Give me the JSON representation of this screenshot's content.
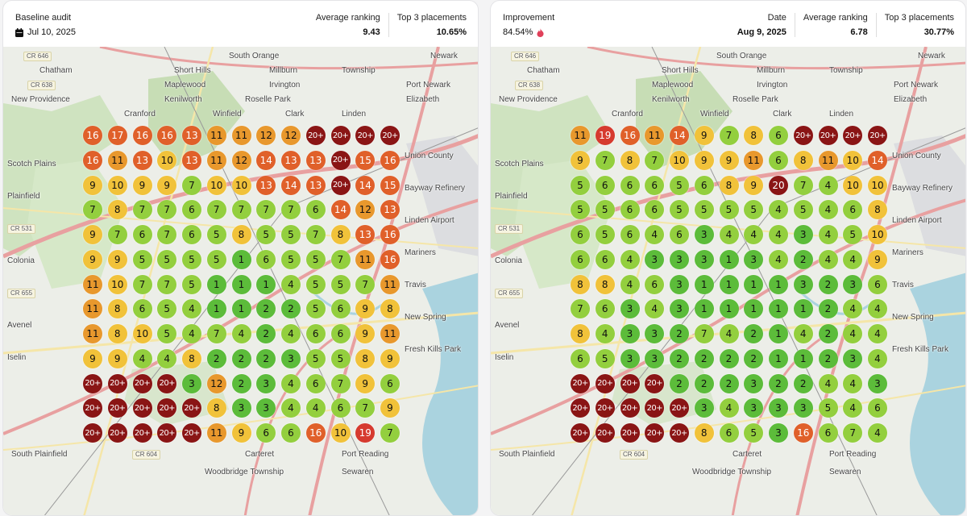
{
  "baseline": {
    "title": "Baseline audit",
    "date": "Jul 10, 2025",
    "date_icon": "calendar-icon",
    "average_ranking_label": "Average ranking",
    "average_ranking": "9.43",
    "top3_label": "Top 3 placements",
    "top3": "10.65%",
    "grid": [
      [
        "16",
        "17",
        "16",
        "16",
        "13",
        "11",
        "11",
        "12",
        "12",
        "20+",
        "20+",
        "20+",
        "20+"
      ],
      [
        "16",
        "11",
        "13",
        "10",
        "13",
        "11",
        "12",
        "14",
        "13",
        "13",
        "20+",
        "15",
        "16"
      ],
      [
        "9",
        "10",
        "9",
        "9",
        "7",
        "10",
        "10",
        "13",
        "14",
        "13",
        "20+",
        "14",
        "15"
      ],
      [
        "7",
        "8",
        "7",
        "7",
        "6",
        "7",
        "7",
        "7",
        "7",
        "6",
        "14",
        "12",
        "13"
      ],
      [
        "9",
        "7",
        "6",
        "7",
        "6",
        "5",
        "8",
        "5",
        "5",
        "7",
        "8",
        "13",
        "16"
      ],
      [
        "9",
        "9",
        "5",
        "5",
        "5",
        "5",
        "1",
        "6",
        "5",
        "5",
        "7",
        "11",
        "16"
      ],
      [
        "11",
        "10",
        "7",
        "7",
        "5",
        "1",
        "1",
        "1",
        "4",
        "5",
        "5",
        "7",
        "11"
      ],
      [
        "11",
        "8",
        "6",
        "5",
        "4",
        "1",
        "1",
        "2",
        "2",
        "5",
        "6",
        "9",
        "8"
      ],
      [
        "11",
        "8",
        "10",
        "5",
        "4",
        "7",
        "4",
        "2",
        "4",
        "6",
        "6",
        "9",
        "11"
      ],
      [
        "9",
        "9",
        "4",
        "4",
        "8",
        "2",
        "2",
        "2",
        "3",
        "5",
        "5",
        "8",
        "9"
      ],
      [
        "20+",
        "20+",
        "20+",
        "20+",
        "3",
        "12",
        "2",
        "3",
        "4",
        "6",
        "7",
        "9",
        "6"
      ],
      [
        "20+",
        "20+",
        "20+",
        "20+",
        "20+",
        "8",
        "3",
        "3",
        "4",
        "4",
        "6",
        "7",
        "9"
      ],
      [
        "20+",
        "20+",
        "20+",
        "20+",
        "20+",
        "11",
        "9",
        "6",
        "6",
        "16",
        "10",
        "19",
        "7"
      ]
    ]
  },
  "current": {
    "improvement_label": "Improvement",
    "improvement": "84.54%",
    "improvement_icon": "flame-icon",
    "date_label": "Date",
    "date": "Aug 9, 2025",
    "average_ranking_label": "Average ranking",
    "average_ranking": "6.78",
    "top3_label": "Top 3 placements",
    "top3": "30.77%",
    "grid": [
      [
        "11",
        "19",
        "16",
        "11",
        "14",
        "9",
        "7",
        "8",
        "6",
        "20+",
        "20+",
        "20+",
        "20+"
      ],
      [
        "9",
        "7",
        "8",
        "7",
        "10",
        "9",
        "9",
        "11",
        "6",
        "8",
        "11",
        "10",
        "14"
      ],
      [
        "5",
        "6",
        "6",
        "6",
        "5",
        "6",
        "8",
        "9",
        "20",
        "7",
        "4",
        "10",
        "10"
      ],
      [
        "5",
        "5",
        "6",
        "6",
        "5",
        "5",
        "5",
        "5",
        "4",
        "5",
        "4",
        "6",
        "8"
      ],
      [
        "6",
        "5",
        "6",
        "4",
        "6",
        "3",
        "4",
        "4",
        "4",
        "3",
        "4",
        "5",
        "10"
      ],
      [
        "6",
        "6",
        "4",
        "3",
        "3",
        "3",
        "1",
        "3",
        "4",
        "2",
        "4",
        "4",
        "9"
      ],
      [
        "8",
        "8",
        "4",
        "6",
        "3",
        "1",
        "1",
        "1",
        "1",
        "3",
        "2",
        "3",
        "6"
      ],
      [
        "7",
        "6",
        "3",
        "4",
        "3",
        "1",
        "1",
        "1",
        "1",
        "1",
        "2",
        "4",
        "4"
      ],
      [
        "8",
        "4",
        "3",
        "3",
        "2",
        "7",
        "4",
        "2",
        "1",
        "4",
        "2",
        "4",
        "4"
      ],
      [
        "6",
        "5",
        "3",
        "3",
        "2",
        "2",
        "2",
        "2",
        "1",
        "1",
        "2",
        "3",
        "4"
      ],
      [
        "20+",
        "20+",
        "20+",
        "20+",
        "2",
        "2",
        "2",
        "3",
        "2",
        "2",
        "4",
        "4",
        "3"
      ],
      [
        "20+",
        "20+",
        "20+",
        "20+",
        "20+",
        "3",
        "4",
        "3",
        "3",
        "3",
        "5",
        "4",
        "6"
      ],
      [
        "20+",
        "20+",
        "20+",
        "20+",
        "20+",
        "8",
        "6",
        "5",
        "3",
        "16",
        "6",
        "7",
        "4"
      ]
    ]
  },
  "map_labels": [
    "Chatham",
    "Short Hills",
    "Newark",
    "Maplewood",
    "Irvington",
    "Millburn",
    "CR 646",
    "CR 638",
    "New Providence",
    "Township",
    "Kenilworth",
    "Roselle Park",
    "Cranford",
    "Scotch Plains",
    "Elizabeth",
    "Winfield",
    "Clark",
    "Linden",
    "Colonia",
    "Carteret",
    "Avenel",
    "Iselin",
    "Port Reading",
    "Woodbridge Township",
    "Sewaren",
    "South Plainfield",
    "Plainfield",
    "CR 531",
    "CR 604",
    "CR 655",
    "New Spring",
    "Travis",
    "Mariners",
    "Fresh Kills Park",
    "Union County",
    "Port Newark",
    "South Orange",
    "Bayway Refinery",
    "Linden Airport"
  ],
  "colors": {
    "top": "#5cbc3a",
    "good": "#93cf3e",
    "mid": "#f1c23a",
    "warn": "#e8982d",
    "bad": "#e0602a",
    "worse": "#d63a2f",
    "none": "#8a1515"
  }
}
